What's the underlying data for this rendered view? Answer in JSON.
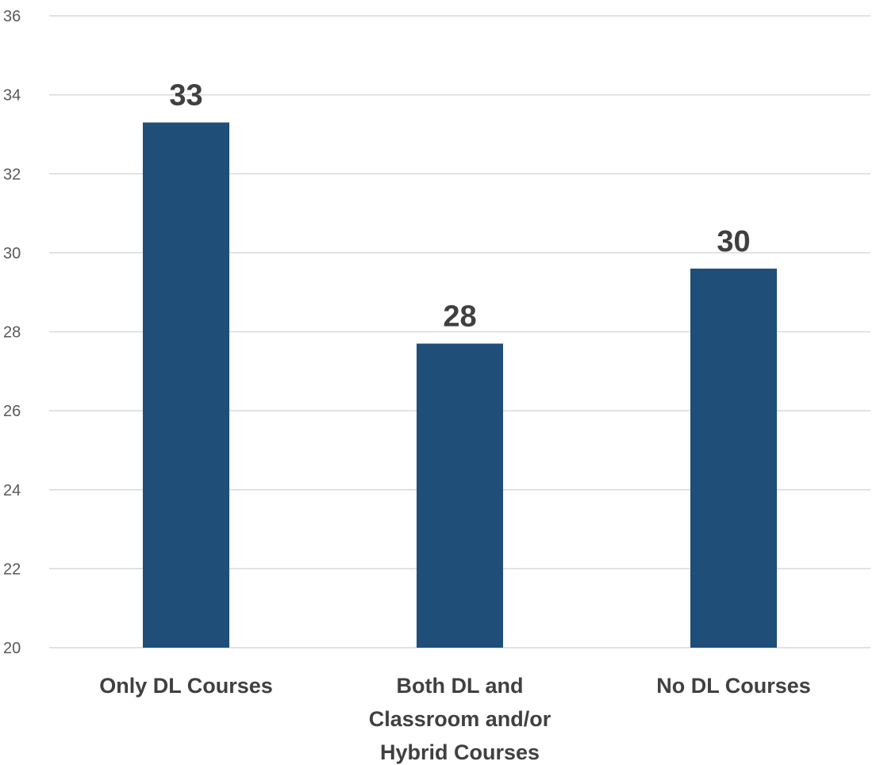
{
  "chart_data": {
    "type": "bar",
    "title": "",
    "xlabel": "",
    "ylabel": "",
    "categories": [
      [
        "Only DL Courses"
      ],
      [
        "Both DL and",
        "Classroom and/or",
        "Hybrid Courses"
      ],
      [
        "No DL Courses"
      ]
    ],
    "values": [
      33.3,
      27.7,
      29.6
    ],
    "data_labels": [
      "33",
      "28",
      "30"
    ],
    "ylim": [
      20,
      36
    ],
    "yticks": [
      20,
      22,
      24,
      26,
      28,
      30,
      32,
      34,
      36
    ],
    "grid": true,
    "legend": "none",
    "bar_color": "#1f4e79"
  }
}
